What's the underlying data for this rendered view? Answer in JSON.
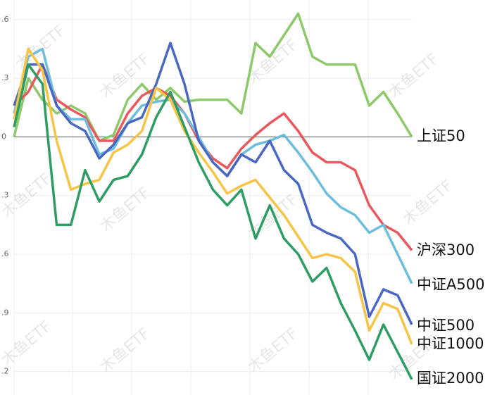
{
  "chart_data": {
    "type": "line",
    "watermark": "木鱼ETF",
    "categories": [
      null,
      null,
      null,
      null,
      null,
      null,
      null,
      null,
      null,
      null,
      null,
      null,
      null,
      null,
      null,
      null,
      null,
      null,
      null,
      null,
      null,
      null,
      null,
      null,
      null,
      null,
      null,
      null,
      null
    ],
    "ylim": [
      -1.32,
      0.7
    ],
    "yticks": [
      {
        "value": 0.6,
        "label": ".6"
      },
      {
        "value": 0.3,
        "label": ".3"
      },
      0,
      {
        "value": -0.3,
        "label": ".3"
      },
      {
        "value": -0.6,
        "label": ".6"
      },
      {
        "value": -0.9,
        "label": ".9"
      },
      {
        "value": -1.2,
        "label": ".2"
      }
    ],
    "grid": true,
    "series": [
      {
        "name": "上证50",
        "color": "#8dc96b",
        "values": [
          0,
          0.3,
          0.19,
          0.12,
          0.16,
          0.12,
          -0.02,
          0.01,
          0.19,
          0.27,
          0.19,
          0.25,
          0.18,
          0.19,
          0.19,
          0.19,
          0.12,
          0.48,
          0.41,
          0.52,
          0.63,
          0.41,
          0.37,
          0.37,
          0.37,
          0.16,
          0.23,
          0.12,
          0
        ]
      },
      {
        "name": "沪深300",
        "color": "#e8585c",
        "values": [
          0.16,
          0.23,
          0.37,
          0.19,
          0.14,
          0.1,
          -0.02,
          -0.02,
          0.12,
          0.21,
          0.25,
          0.21,
          0.12,
          -0.02,
          -0.11,
          -0.16,
          -0.06,
          0.01,
          0.07,
          0.12,
          0.03,
          -0.08,
          -0.13,
          -0.13,
          -0.17,
          -0.35,
          -0.45,
          -0.49,
          -0.58
        ]
      },
      {
        "name": "中证A500",
        "color": "#6dbddd",
        "values": [
          0.12,
          0.41,
          0.45,
          0.16,
          0.09,
          0.09,
          -0.09,
          -0.06,
          0.07,
          0.16,
          0.18,
          0.19,
          0.12,
          0,
          -0.13,
          -0.2,
          -0.09,
          -0.04,
          -0.02,
          0.01,
          -0.08,
          -0.18,
          -0.29,
          -0.36,
          -0.4,
          -0.49,
          -0.45,
          -0.6,
          -0.75
        ]
      },
      {
        "name": "中证500",
        "color": "#4a67c1",
        "values": [
          0.16,
          0.37,
          0.37,
          0.16,
          0.07,
          0.03,
          -0.11,
          -0.04,
          0.07,
          0.1,
          0.27,
          0.48,
          0.27,
          -0.02,
          -0.13,
          -0.2,
          -0.09,
          -0.13,
          -0.02,
          -0.17,
          -0.24,
          -0.45,
          -0.49,
          -0.52,
          -0.6,
          -0.92,
          -0.78,
          -0.81,
          -0.96
        ]
      },
      {
        "name": "中证1000",
        "color": "#f6c545",
        "values": [
          0.09,
          0.45,
          0.34,
          -0.02,
          -0.27,
          -0.24,
          -0.22,
          -0.08,
          -0.04,
          0.03,
          0.25,
          0.19,
          0.03,
          -0.08,
          -0.18,
          -0.29,
          -0.25,
          -0.22,
          -0.31,
          -0.4,
          -0.51,
          -0.62,
          -0.6,
          -0.62,
          -0.69,
          -0.99,
          -0.85,
          -0.88,
          -1.06
        ]
      },
      {
        "name": "国证2000",
        "color": "#2e9d63",
        "values": [
          0.05,
          0.37,
          0.27,
          -0.45,
          -0.45,
          -0.17,
          -0.33,
          -0.22,
          -0.2,
          -0.09,
          0.1,
          0.23,
          0.05,
          -0.13,
          -0.27,
          -0.35,
          -0.27,
          -0.52,
          -0.35,
          -0.52,
          -0.6,
          -0.74,
          -0.67,
          -0.85,
          -0.99,
          -1.14,
          -0.96,
          -1.1,
          -1.24
        ]
      }
    ]
  }
}
